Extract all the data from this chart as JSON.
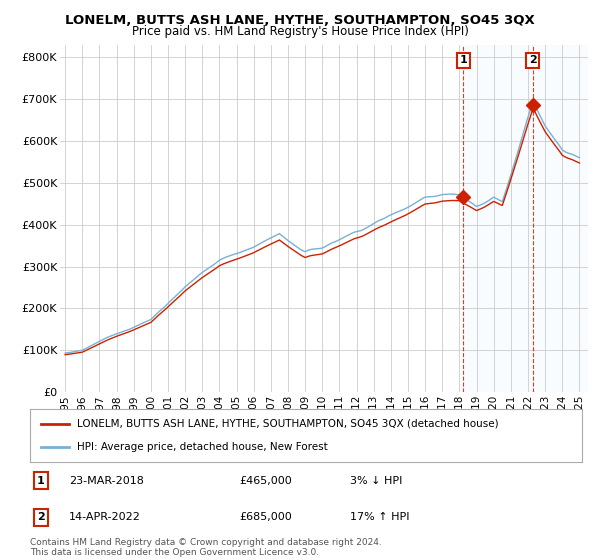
{
  "title": "LONELM, BUTTS ASH LANE, HYTHE, SOUTHAMPTON, SO45 3QX",
  "subtitle": "Price paid vs. HM Land Registry's House Price Index (HPI)",
  "ylabel_ticks": [
    "£0",
    "£100K",
    "£200K",
    "£300K",
    "£400K",
    "£500K",
    "£600K",
    "£700K",
    "£800K"
  ],
  "ytick_values": [
    0,
    100000,
    200000,
    300000,
    400000,
    500000,
    600000,
    700000,
    800000
  ],
  "ylim": [
    0,
    830000
  ],
  "xlim_start": 1994.7,
  "xlim_end": 2025.5,
  "hpi_color": "#7ab0d4",
  "price_color": "#cc2200",
  "dashed_color": "#cc2200",
  "point1_date": "23-MAR-2018",
  "point1_price": 465000,
  "point1_pct": "3%",
  "point1_dir": "↓",
  "point1_x": 2018.22,
  "point2_date": "14-APR-2022",
  "point2_price": 685000,
  "point2_pct": "17%",
  "point2_dir": "↑",
  "point2_x": 2022.28,
  "legend_line1": "LONELM, BUTTS ASH LANE, HYTHE, SOUTHAMPTON, SO45 3QX (detached house)",
  "legend_line2": "HPI: Average price, detached house, New Forest",
  "footer": "Contains HM Land Registry data © Crown copyright and database right 2024.\nThis data is licensed under the Open Government Licence v3.0.",
  "background_color": "#ffffff",
  "grid_color": "#cccccc",
  "span_color": "#ddeeff"
}
